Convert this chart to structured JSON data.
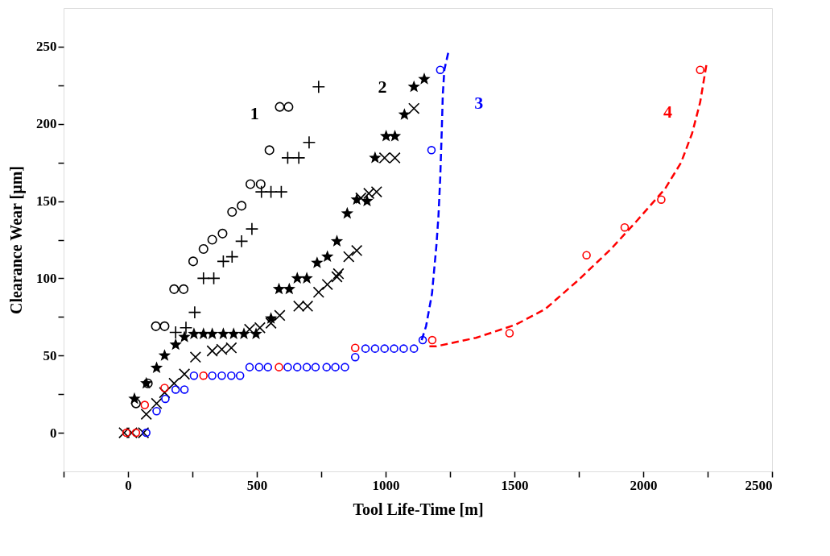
{
  "chart_data": {
    "type": "scatter",
    "xlabel": "Tool Life-Time  [m]",
    "ylabel": "Clearance Wear [µm]",
    "xlim": [
      -250,
      2500
    ],
    "ylim": [
      -25,
      275
    ],
    "xticks": [
      {
        "value": -250,
        "label": null
      },
      0,
      {
        "value": 250,
        "label": null
      },
      500,
      {
        "value": 750,
        "label": null
      },
      1000,
      {
        "value": 1250,
        "label": null
      },
      1500,
      {
        "value": 1750,
        "label": null
      },
      2000,
      {
        "value": 2250,
        "label": null
      },
      2500
    ],
    "yticks": [
      0,
      {
        "value": 25,
        "label": null
      },
      50,
      {
        "value": 75,
        "label": null
      },
      100,
      {
        "value": 125,
        "label": null
      },
      150,
      {
        "value": 175,
        "label": null
      },
      200,
      {
        "value": 225,
        "label": null
      },
      250
    ],
    "grid": false,
    "series": [
      {
        "name": "1",
        "type": "scatter",
        "marker": "circle",
        "color": "#000000",
        "x": [
          31,
          77,
          108,
          142,
          179,
          216,
          253,
          293,
          327,
          367,
          404,
          441,
          475,
          515,
          549,
          589,
          623
        ],
        "values": [
          19,
          32,
          69,
          69,
          93,
          93,
          111,
          119,
          125,
          129,
          143,
          147,
          161,
          161,
          183,
          211,
          211
        ]
      },
      {
        "type": "scatter",
        "marker": "cross",
        "color": "#000000",
        "x": [
          185,
          225,
          259,
          293,
          333,
          370,
          404,
          441,
          481,
          518,
          555,
          595,
          620,
          663,
          703,
          740
        ],
        "values": [
          65,
          68,
          78,
          100,
          100,
          111,
          114,
          124,
          132,
          156,
          156,
          156,
          178,
          178,
          188,
          224
        ]
      },
      {
        "name": "2",
        "type": "scatter",
        "marker": "star",
        "color": "#000000",
        "x": [
          25,
          71,
          111,
          142,
          185,
          219,
          256,
          293,
          327,
          370,
          410,
          450,
          497,
          555,
          586,
          626,
          657,
          694,
          734,
          774,
          811,
          851,
          888,
          928,
          959,
          1002,
          1036,
          1073,
          1110,
          1150
        ],
        "values": [
          22,
          32,
          42,
          50,
          57,
          62,
          64,
          64,
          64,
          64,
          64,
          64,
          64,
          74,
          93,
          93,
          100,
          100,
          110,
          114,
          124,
          142,
          151,
          150,
          178,
          192,
          192,
          206,
          224,
          229
        ]
      },
      {
        "type": "scatter",
        "marker": "x",
        "color": "#000000",
        "x": [
          -15,
          15,
          60,
          71,
          111,
          142,
          179,
          219,
          262,
          327,
          364,
          401,
          472,
          512,
          555,
          589,
          663,
          697,
          740,
          774,
          811,
          817,
          857,
          888,
          904,
          935,
          965,
          996,
          1036,
          1110
        ],
        "values": [
          0,
          0,
          0,
          12,
          19,
          26,
          32,
          38,
          49,
          53,
          54,
          55,
          67,
          68,
          71,
          76,
          82,
          82,
          91,
          96,
          101,
          103,
          114,
          118,
          152,
          155,
          156,
          178,
          178,
          210
        ]
      },
      {
        "name": "3",
        "type": "line",
        "line_style": "dashed",
        "color": "#0000ff",
        "x": [
          1140,
          1157,
          1180,
          1197,
          1205,
          1212,
          1218,
          1222,
          1228,
          1243
        ],
        "values": [
          60,
          69,
          90,
          121,
          140,
          165,
          196,
          219,
          235,
          246
        ]
      },
      {
        "name": "4",
        "type": "line",
        "line_style": "dashed",
        "color": "#ff0000",
        "x": [
          1170,
          1197,
          1351,
          1505,
          1619,
          1749,
          1875,
          1974,
          2085,
          2147,
          2190,
          2221,
          2245
        ],
        "values": [
          56,
          56,
          61.5,
          70,
          80,
          99,
          119,
          137,
          158,
          175,
          194,
          214,
          238
        ]
      },
      {
        "type": "scatter",
        "marker": "circle",
        "color": "#0000ff",
        "x": [
          71,
          111,
          145,
          185,
          219,
          256,
          327,
          364,
          401,
          435,
          472,
          509,
          543,
          620,
          657,
          694,
          728,
          771,
          805,
          842,
          882,
          922,
          959,
          996,
          1033,
          1070,
          1110,
          1144,
          1178,
          1212
        ],
        "values": [
          0,
          14,
          22,
          28,
          28,
          37,
          37,
          37,
          37,
          37,
          42.5,
          42.5,
          42.5,
          42.5,
          42.5,
          42.5,
          42.5,
          42.5,
          42.5,
          42.5,
          49,
          54.5,
          54.5,
          54.5,
          54.5,
          54.5,
          54.5,
          60,
          183,
          235
        ]
      },
      {
        "type": "scatter",
        "marker": "circle",
        "color": "#ff0000",
        "x": [
          -6,
          31,
          65,
          142,
          293,
          586,
          882,
          1181,
          1481,
          1780,
          1928,
          2070,
          2221
        ],
        "values": [
          0,
          0,
          18,
          29,
          37,
          42.5,
          55,
          60,
          64.5,
          115,
          133,
          151,
          235
        ]
      }
    ],
    "legend": false
  }
}
